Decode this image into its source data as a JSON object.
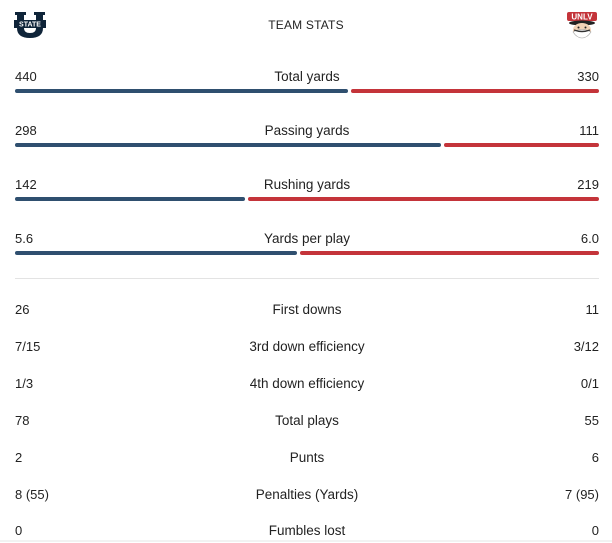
{
  "header": {
    "title": "TEAM STATS",
    "left_logo_icon": "utah-state-logo-icon",
    "left_logo_text": "STATE",
    "right_logo_icon": "unlv-logo-icon",
    "right_logo_text": "UNLV"
  },
  "colors": {
    "left_team": "#2f4f6f",
    "right_team": "#c4343a"
  },
  "bar_stats": [
    {
      "label": "Total yards",
      "left": "440",
      "right": "330",
      "left_share": 0.571
    },
    {
      "label": "Passing yards",
      "left": "298",
      "right": "111",
      "left_share": 0.729
    },
    {
      "label": "Rushing yards",
      "left": "142",
      "right": "219",
      "left_share": 0.393
    },
    {
      "label": "Yards per play",
      "left": "5.6",
      "right": "6.0",
      "left_share": 0.483
    }
  ],
  "row_stats": [
    {
      "label": "First downs",
      "left": "26",
      "right": "11"
    },
    {
      "label": "3rd down efficiency",
      "left": "7/15",
      "right": "3/12"
    },
    {
      "label": "4th down efficiency",
      "left": "1/3",
      "right": "0/1"
    },
    {
      "label": "Total plays",
      "left": "78",
      "right": "55"
    },
    {
      "label": "Punts",
      "left": "2",
      "right": "6"
    },
    {
      "label": "Penalties (Yards)",
      "left": "8 (55)",
      "right": "7 (95)"
    },
    {
      "label": "Fumbles lost",
      "left": "0",
      "right": "0"
    }
  ]
}
